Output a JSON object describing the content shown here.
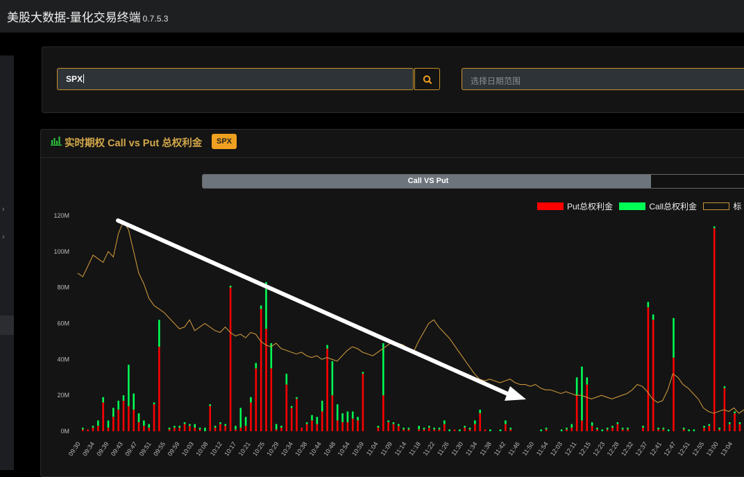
{
  "app": {
    "title": "美股大数据-量化交易终端",
    "version": "0.7.5.3"
  },
  "search": {
    "value": "SPX",
    "date_placeholder": "选择日期范围"
  },
  "chart_panel": {
    "title": "实时期权 Call vs Put 总权利金",
    "badge": "SPX"
  },
  "progress": {
    "label": "Call VS Put",
    "fraction": 0.82
  },
  "icons": {
    "search": "search-icon",
    "chart": "bar-chart-icon",
    "sidebar": "chevron-right-icon"
  },
  "colors": {
    "accent": "#c9912b",
    "put": "#ff0000",
    "call": "#00ff55",
    "line": "#c9953a",
    "title": "#d4a84a",
    "badge": "#f0a020"
  },
  "chart_data": {
    "type": "bar",
    "y_ticks": [
      "0M",
      "20M",
      "40M",
      "60M",
      "80M",
      "100M",
      "120M"
    ],
    "ylim": [
      0,
      120
    ],
    "y_unit": "M",
    "x_tick_labels": [
      "09:30",
      "09:34",
      "09:39",
      "09:43",
      "09:47",
      "09:51",
      "09:55",
      "09:59",
      "10:03",
      "10:08",
      "10:12",
      "10:17",
      "10:21",
      "10:25",
      "10:29",
      "10:34",
      "10:38",
      "10:44",
      "10:48",
      "10:54",
      "10:59",
      "11:04",
      "11:09",
      "11:14",
      "11:18",
      "11:22",
      "11:26",
      "11:30",
      "11:34",
      "11:38",
      "11:42",
      "11:46",
      "11:50",
      "11:54",
      "12:03",
      "12:11",
      "12:15",
      "12:23",
      "12:28",
      "12:32",
      "12:37",
      "12:41",
      "12:47",
      "12:51",
      "12:55",
      "13:00",
      "13:04"
    ],
    "legend": [
      {
        "name": "Put总权利金",
        "color": "#ff0000"
      },
      {
        "name": "Call总权利金",
        "color": "#00ff55"
      },
      {
        "name": "标",
        "color": "#c9953a"
      }
    ],
    "put_values": [
      1,
      1,
      2,
      3,
      16,
      2,
      8,
      12,
      17,
      14,
      12,
      5,
      3,
      2,
      15,
      47,
      0,
      1,
      2,
      2,
      4,
      3,
      2,
      1,
      0,
      14,
      2,
      4,
      3,
      80,
      1,
      2,
      3,
      16,
      35,
      68,
      57,
      35,
      1,
      2,
      26,
      13,
      18,
      2,
      4,
      6,
      4,
      11,
      46,
      20,
      6,
      5,
      5,
      7,
      6,
      32,
      0,
      0,
      2,
      20,
      5,
      4,
      3,
      1,
      1,
      0,
      1,
      1,
      2,
      1,
      1,
      4,
      0,
      1,
      0,
      2,
      1,
      4,
      10,
      1,
      0,
      0,
      0,
      4,
      1,
      0,
      0,
      0,
      0,
      0,
      0,
      1,
      0,
      0,
      0,
      1,
      2,
      20,
      6,
      26,
      3,
      1,
      0,
      1,
      2,
      4,
      1,
      1,
      0,
      0,
      2,
      69,
      62,
      1,
      1,
      0,
      41,
      0,
      1,
      0,
      0,
      0,
      2,
      3,
      113,
      1,
      24,
      4,
      10,
      4
    ],
    "call_values": [
      1,
      0,
      1,
      3,
      3,
      4,
      5,
      5,
      3,
      23,
      9,
      5,
      3,
      2,
      1,
      15,
      0,
      1,
      1,
      1,
      1,
      1,
      2,
      1,
      2,
      1,
      1,
      1,
      1,
      1,
      2,
      11,
      5,
      3,
      3,
      2,
      26,
      14,
      3,
      1,
      6,
      1,
      1,
      0,
      1,
      3,
      4,
      6,
      2,
      19,
      9,
      5,
      6,
      4,
      2,
      1,
      0,
      0,
      1,
      29,
      1,
      1,
      1,
      1,
      1,
      0,
      2,
      1,
      1,
      1,
      1,
      2,
      1,
      0,
      1,
      1,
      1,
      2,
      2,
      0,
      1,
      0,
      1,
      2,
      1,
      0,
      0,
      0,
      0,
      0,
      1,
      1,
      0,
      0,
      1,
      1,
      2,
      10,
      30,
      4,
      2,
      1,
      1,
      1,
      1,
      1,
      1,
      1,
      0,
      0,
      1,
      3,
      3,
      1,
      1,
      1,
      22,
      0,
      1,
      1,
      1,
      0,
      1,
      1,
      1,
      1,
      1,
      1,
      1,
      1
    ],
    "underlying_line": [
      88,
      86,
      92,
      98,
      96,
      94,
      100,
      97,
      110,
      117,
      112,
      100,
      88,
      82,
      74,
      70,
      68,
      66,
      63,
      60,
      57,
      58,
      62,
      56,
      58,
      60,
      58,
      56,
      55,
      58,
      55,
      53,
      54,
      52,
      55,
      54,
      50,
      48,
      47,
      49,
      46,
      45,
      44,
      43,
      44,
      42,
      41,
      42,
      40,
      41,
      40,
      39,
      42,
      45,
      47,
      46,
      44,
      43,
      42,
      44,
      46,
      48,
      50,
      49,
      48,
      46,
      44,
      50,
      55,
      60,
      62,
      58,
      55,
      52,
      48,
      44,
      40,
      36,
      32,
      29,
      28,
      29,
      28,
      27,
      28,
      29,
      27,
      26,
      26,
      25,
      26,
      24,
      23,
      23,
      22,
      21,
      22,
      21,
      20,
      20,
      19,
      18,
      19,
      20,
      19,
      18,
      19,
      20,
      21,
      23,
      26,
      25,
      22,
      18,
      16,
      17,
      23,
      32,
      30,
      26,
      24,
      21,
      18,
      13,
      11,
      10,
      11,
      12,
      11,
      13,
      10,
      12
    ]
  }
}
